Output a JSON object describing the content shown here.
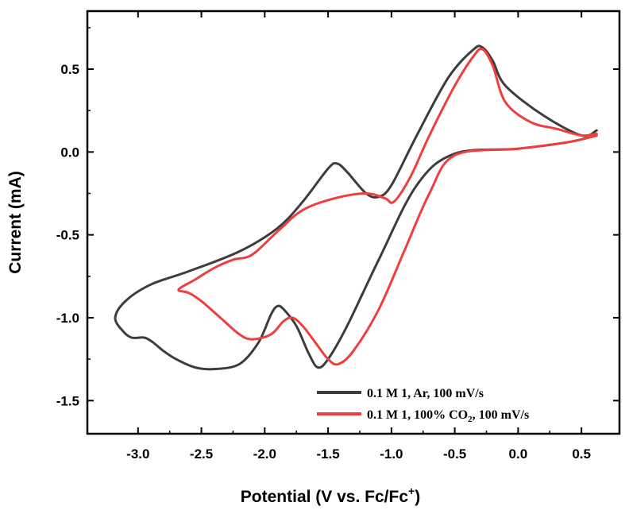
{
  "chart_data": {
    "type": "line",
    "xlabel": "Potential (V vs. Fc/Fc",
    "xlabel_sup": "+",
    "xlabel_close": ")",
    "ylabel": "Current (mA)",
    "xlim": [
      -3.4,
      0.8
    ],
    "ylim": [
      -1.7,
      0.85
    ],
    "xticks": [
      -3.0,
      -2.5,
      -2.0,
      -1.5,
      -1.0,
      -0.5,
      0.0,
      0.5
    ],
    "xtick_labels": [
      "-3.0",
      "-2.5",
      "-2.0",
      "-1.5",
      "-1.0",
      "-0.5",
      "0.0",
      "0.5"
    ],
    "yticks": [
      -1.5,
      -1.0,
      -0.5,
      0.0,
      0.5
    ],
    "ytick_labels": [
      "-1.5",
      "-1.0",
      "-0.5",
      "0.0",
      "0.5"
    ],
    "grid": false,
    "legend_position": "bottom-right",
    "series": [
      {
        "name": "0.1 M 1, Ar, 100 mV/s",
        "legend_parts": [
          "0.1 M 1, Ar, 100 mV/s"
        ],
        "color": "#3d3d3d",
        "x": [
          0.62,
          0.4,
          0.0,
          -0.5,
          -0.8,
          -1.1,
          -1.35,
          -1.5,
          -1.58,
          -1.65,
          -1.75,
          -1.85,
          -1.9,
          -1.95,
          -2.05,
          -2.2,
          -2.4,
          -2.55,
          -2.7,
          -2.8,
          -2.88,
          -2.95,
          -3.05,
          -3.12,
          -3.18,
          -3.1,
          -2.9,
          -2.6,
          -2.2,
          -1.9,
          -1.7,
          -1.5,
          -1.43,
          -1.35,
          -1.2,
          -1.1,
          -1.0,
          -0.8,
          -0.55,
          -0.35,
          -0.28,
          -0.2,
          -0.1,
          0.2,
          0.5,
          0.62
        ],
        "y": [
          0.1,
          0.06,
          0.02,
          -0.01,
          -0.2,
          -0.65,
          -1.05,
          -1.25,
          -1.3,
          -1.22,
          -1.05,
          -0.95,
          -0.93,
          -0.98,
          -1.15,
          -1.28,
          -1.31,
          -1.3,
          -1.25,
          -1.2,
          -1.15,
          -1.12,
          -1.12,
          -1.08,
          -1.0,
          -0.9,
          -0.8,
          -0.72,
          -0.6,
          -0.46,
          -0.3,
          -0.1,
          -0.07,
          -0.12,
          -0.25,
          -0.27,
          -0.2,
          0.1,
          0.45,
          0.62,
          0.63,
          0.55,
          0.4,
          0.22,
          0.1,
          0.13
        ]
      },
      {
        "name_parts": [
          "0.1 M 1, 100% CO",
          "2",
          ", 100 mV/s"
        ],
        "color": "#ee3e3e",
        "x": [
          0.62,
          0.4,
          0.0,
          -0.5,
          -0.7,
          -0.9,
          -1.1,
          -1.3,
          -1.42,
          -1.5,
          -1.6,
          -1.7,
          -1.78,
          -1.85,
          -1.95,
          -2.1,
          -2.2,
          -2.35,
          -2.5,
          -2.6,
          -2.68,
          -2.55,
          -2.4,
          -2.25,
          -2.1,
          -1.9,
          -1.7,
          -1.45,
          -1.2,
          -1.05,
          -0.98,
          -0.85,
          -0.7,
          -0.5,
          -0.35,
          -0.28,
          -0.2,
          -0.1,
          0.1,
          0.3,
          0.5,
          0.62
        ],
        "y": [
          0.1,
          0.06,
          0.02,
          -0.02,
          -0.25,
          -0.6,
          -0.95,
          -1.2,
          -1.28,
          -1.25,
          -1.15,
          -1.05,
          -1.0,
          -1.02,
          -1.1,
          -1.13,
          -1.1,
          -1.0,
          -0.9,
          -0.85,
          -0.83,
          -0.77,
          -0.7,
          -0.65,
          -0.62,
          -0.48,
          -0.35,
          -0.28,
          -0.25,
          -0.28,
          -0.3,
          -0.15,
          0.1,
          0.4,
          0.58,
          0.62,
          0.52,
          0.3,
          0.18,
          0.14,
          0.1,
          0.11
        ]
      }
    ]
  }
}
